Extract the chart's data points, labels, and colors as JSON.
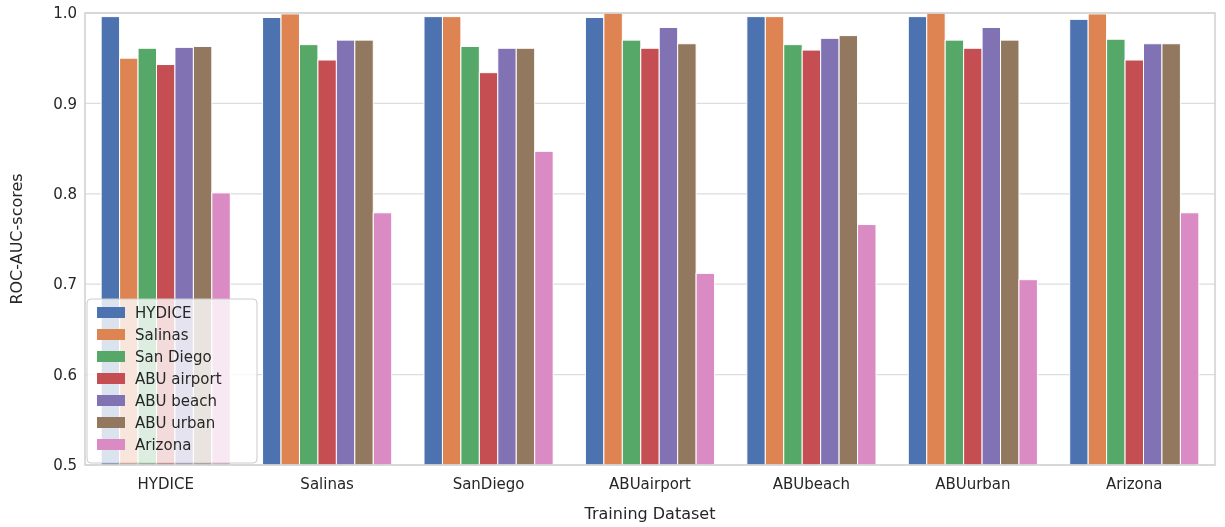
{
  "chart_data": {
    "type": "bar",
    "xlabel": "Training Dataset",
    "ylabel": "ROC-AUC-scores",
    "categories": [
      "HYDICE",
      "Salinas",
      "SanDiego",
      "ABUairport",
      "ABUbeach",
      "ABUurban",
      "Arizona"
    ],
    "series": [
      {
        "name": "HYDICE",
        "color": "#4c72b0",
        "values": [
          0.996,
          0.995,
          0.996,
          0.995,
          0.996,
          0.996,
          0.993
        ]
      },
      {
        "name": "Salinas",
        "color": "#dd8452",
        "values": [
          0.95,
          0.999,
          0.996,
          1.0,
          0.996,
          1.0,
          0.999
        ]
      },
      {
        "name": "San Diego",
        "color": "#55a868",
        "values": [
          0.961,
          0.965,
          0.963,
          0.97,
          0.965,
          0.97,
          0.971
        ]
      },
      {
        "name": "ABU airport",
        "color": "#c44e52",
        "values": [
          0.943,
          0.948,
          0.934,
          0.961,
          0.959,
          0.961,
          0.948
        ]
      },
      {
        "name": "ABU beach",
        "color": "#8172b3",
        "values": [
          0.962,
          0.97,
          0.961,
          0.984,
          0.972,
          0.984,
          0.966
        ]
      },
      {
        "name": "ABU urban",
        "color": "#937860",
        "values": [
          0.963,
          0.97,
          0.961,
          0.966,
          0.975,
          0.97,
          0.966
        ]
      },
      {
        "name": "Arizona",
        "color": "#da8bc3",
        "values": [
          0.801,
          0.779,
          0.847,
          0.712,
          0.766,
          0.705,
          0.779
        ]
      }
    ],
    "ylim": [
      0.5,
      1.0
    ],
    "yticks": [
      {
        "value": 0.5,
        "label": "0.5"
      },
      {
        "value": 0.6,
        "label": "0.6"
      },
      {
        "value": 0.7,
        "label": "0.7"
      },
      {
        "value": 0.8,
        "label": "0.8"
      },
      {
        "value": 0.9,
        "label": "0.9"
      },
      {
        "value": 1.0,
        "label": "1.0"
      }
    ],
    "grid": "y",
    "legend": "bottom left"
  }
}
